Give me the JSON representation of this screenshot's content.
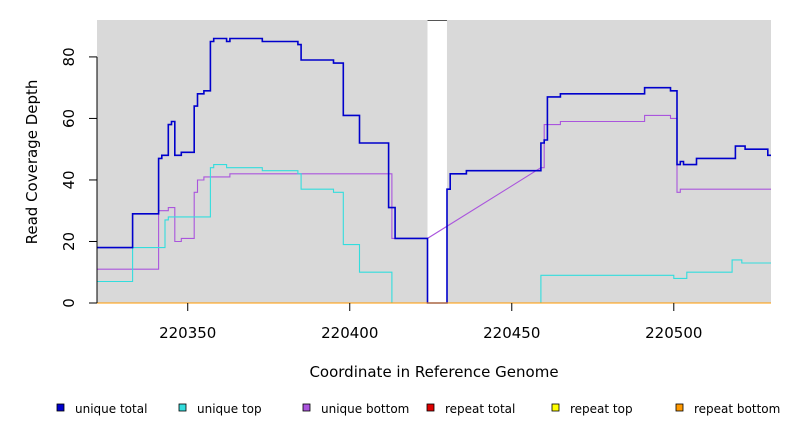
{
  "chart_data": {
    "type": "line",
    "xlabel": "Coordinate in Reference Genome",
    "ylabel": "Read Coverage Depth",
    "xlim": [
      220322,
      220530
    ],
    "ylim": [
      0,
      92
    ],
    "xticks": [
      220350,
      220400,
      220450,
      220500
    ],
    "yticks": [
      0,
      20,
      40,
      60,
      80
    ],
    "background": "#d9d9d9",
    "gap_region": [
      220424,
      220430
    ],
    "gap_color": "#ffffff",
    "legend_position": "bottom",
    "series": [
      {
        "name": "unique total",
        "color": "#0000cc",
        "points": [
          [
            220322,
            18
          ],
          [
            220333,
            18
          ],
          [
            220333,
            29
          ],
          [
            220341,
            29
          ],
          [
            220341,
            47
          ],
          [
            220342,
            47
          ],
          [
            220342,
            48
          ],
          [
            220344,
            48
          ],
          [
            220344,
            58
          ],
          [
            220345,
            58
          ],
          [
            220345,
            59
          ],
          [
            220346,
            59
          ],
          [
            220346,
            48
          ],
          [
            220348,
            48
          ],
          [
            220348,
            49
          ],
          [
            220352,
            49
          ],
          [
            220352,
            64
          ],
          [
            220353,
            64
          ],
          [
            220353,
            68
          ],
          [
            220355,
            68
          ],
          [
            220355,
            69
          ],
          [
            220357,
            69
          ],
          [
            220357,
            85
          ],
          [
            220358,
            85
          ],
          [
            220358,
            86
          ],
          [
            220362,
            86
          ],
          [
            220362,
            85
          ],
          [
            220363,
            85
          ],
          [
            220363,
            86
          ],
          [
            220373,
            86
          ],
          [
            220373,
            85
          ],
          [
            220384,
            85
          ],
          [
            220384,
            84
          ],
          [
            220385,
            84
          ],
          [
            220385,
            79
          ],
          [
            220395,
            79
          ],
          [
            220395,
            78
          ],
          [
            220398,
            78
          ],
          [
            220398,
            61
          ],
          [
            220403,
            61
          ],
          [
            220403,
            52
          ],
          [
            220412,
            52
          ],
          [
            220412,
            31
          ],
          [
            220414,
            31
          ],
          [
            220414,
            21
          ],
          [
            220424,
            21
          ],
          [
            220424,
            0
          ],
          [
            220430,
            0
          ],
          [
            220430,
            37
          ],
          [
            220431,
            37
          ],
          [
            220431,
            42
          ],
          [
            220436,
            42
          ],
          [
            220436,
            43
          ],
          [
            220459,
            43
          ],
          [
            220459,
            52
          ],
          [
            220460,
            52
          ],
          [
            220460,
            53
          ],
          [
            220461,
            53
          ],
          [
            220461,
            67
          ],
          [
            220465,
            67
          ],
          [
            220465,
            68
          ],
          [
            220491,
            68
          ],
          [
            220491,
            70
          ],
          [
            220499,
            70
          ],
          [
            220499,
            69
          ],
          [
            220501,
            69
          ],
          [
            220501,
            45
          ],
          [
            220502,
            45
          ],
          [
            220502,
            46
          ],
          [
            220503,
            46
          ],
          [
            220503,
            45
          ],
          [
            220507,
            45
          ],
          [
            220507,
            47
          ],
          [
            220519,
            47
          ],
          [
            220519,
            51
          ],
          [
            220522,
            51
          ],
          [
            220522,
            50
          ],
          [
            220529,
            50
          ],
          [
            220529,
            48
          ],
          [
            220530,
            48
          ]
        ]
      },
      {
        "name": "unique top",
        "color": "#33dddd",
        "points": [
          [
            220322,
            7
          ],
          [
            220333,
            7
          ],
          [
            220333,
            18
          ],
          [
            220343,
            18
          ],
          [
            220343,
            27
          ],
          [
            220344,
            27
          ],
          [
            220344,
            28
          ],
          [
            220357,
            28
          ],
          [
            220357,
            44
          ],
          [
            220358,
            44
          ],
          [
            220358,
            45
          ],
          [
            220362,
            45
          ],
          [
            220362,
            44
          ],
          [
            220373,
            44
          ],
          [
            220373,
            43
          ],
          [
            220384,
            43
          ],
          [
            220384,
            42
          ],
          [
            220385,
            42
          ],
          [
            220385,
            37
          ],
          [
            220395,
            37
          ],
          [
            220395,
            36
          ],
          [
            220398,
            36
          ],
          [
            220398,
            19
          ],
          [
            220403,
            19
          ],
          [
            220403,
            10
          ],
          [
            220413,
            10
          ],
          [
            220413,
            0
          ],
          [
            220459,
            0
          ],
          [
            220459,
            9
          ],
          [
            220500,
            9
          ],
          [
            220500,
            8
          ],
          [
            220504,
            8
          ],
          [
            220504,
            10
          ],
          [
            220518,
            10
          ],
          [
            220518,
            14
          ],
          [
            220521,
            14
          ],
          [
            220521,
            13
          ],
          [
            220530,
            13
          ]
        ]
      },
      {
        "name": "unique bottom",
        "color": "#aa55dd",
        "points": [
          [
            220322,
            11
          ],
          [
            220341,
            11
          ],
          [
            220341,
            30
          ],
          [
            220344,
            30
          ],
          [
            220344,
            31
          ],
          [
            220346,
            31
          ],
          [
            220346,
            20
          ],
          [
            220348,
            20
          ],
          [
            220348,
            21
          ],
          [
            220352,
            21
          ],
          [
            220352,
            36
          ],
          [
            220353,
            36
          ],
          [
            220353,
            40
          ],
          [
            220355,
            40
          ],
          [
            220355,
            41
          ],
          [
            220363,
            41
          ],
          [
            220363,
            42
          ],
          [
            220413,
            42
          ],
          [
            220413,
            21
          ],
          [
            220424,
            21
          ],
          [
            220459,
            44
          ],
          [
            220460,
            44
          ],
          [
            220460,
            58
          ],
          [
            220465,
            58
          ],
          [
            220465,
            59
          ],
          [
            220491,
            59
          ],
          [
            220491,
            61
          ],
          [
            220499,
            61
          ],
          [
            220499,
            60
          ],
          [
            220501,
            60
          ],
          [
            220501,
            36
          ],
          [
            220502,
            36
          ],
          [
            220502,
            37
          ],
          [
            220530,
            37
          ]
        ]
      },
      {
        "name": "repeat total",
        "color": "#dd0000",
        "points": [
          [
            220322,
            0
          ],
          [
            220530,
            0
          ]
        ]
      },
      {
        "name": "repeat top",
        "color": "#ffff00",
        "points": [
          [
            220322,
            0
          ],
          [
            220530,
            0
          ]
        ]
      },
      {
        "name": "repeat bottom",
        "color": "#ff9900",
        "points": [
          [
            220322,
            0
          ],
          [
            220530,
            0
          ]
        ]
      }
    ]
  }
}
